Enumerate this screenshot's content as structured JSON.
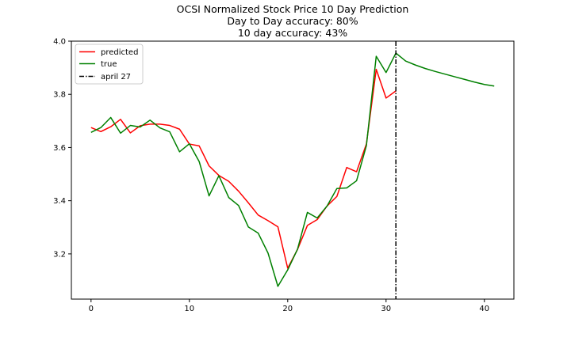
{
  "chart_data": {
    "type": "line",
    "title_lines": [
      "OCSI Normalized Stock Price 10 Day Prediction",
      "Day to Day accuracy: 80%",
      "10 day accuracy: 43%"
    ],
    "xlabel": "",
    "ylabel": "",
    "xlim": [
      -2,
      43
    ],
    "ylim": [
      3.03,
      4.0
    ],
    "xticks": [
      0,
      10,
      20,
      30,
      40
    ],
    "yticks": [
      3.2,
      3.4,
      3.6,
      3.8,
      4.0
    ],
    "xtick_labels": [
      "0",
      "10",
      "20",
      "30",
      "40"
    ],
    "ytick_labels": [
      "3.2",
      "3.4",
      "3.6",
      "3.8",
      "4.0"
    ],
    "legend_position": "upper-left",
    "series": [
      {
        "name": "predicted",
        "color": "#ff0000",
        "style": "solid",
        "x": [
          0,
          1,
          2,
          3,
          4,
          5,
          6,
          7,
          8,
          9,
          10,
          11,
          12,
          13,
          14,
          15,
          16,
          17,
          18,
          19,
          20,
          21,
          22,
          23,
          24,
          25,
          26,
          27,
          28,
          29,
          30,
          31
        ],
        "y": [
          3.675,
          3.66,
          3.678,
          3.706,
          3.655,
          3.682,
          3.688,
          3.688,
          3.683,
          3.669,
          3.613,
          3.606,
          3.531,
          3.495,
          3.473,
          3.436,
          3.392,
          3.346,
          3.325,
          3.302,
          3.146,
          3.217,
          3.307,
          3.329,
          3.38,
          3.416,
          3.525,
          3.509,
          3.613,
          3.894,
          3.786,
          3.813
        ]
      },
      {
        "name": "true",
        "color": "#008000",
        "style": "solid",
        "x": [
          0,
          1,
          2,
          3,
          4,
          5,
          6,
          7,
          8,
          9,
          10,
          11,
          12,
          13,
          14,
          15,
          16,
          17,
          18,
          19,
          20,
          21,
          22,
          23,
          24,
          25,
          26,
          27,
          28,
          29,
          30,
          31,
          32,
          33,
          34,
          35,
          36,
          37,
          38,
          39,
          40,
          41
        ],
        "y": [
          3.657,
          3.675,
          3.713,
          3.654,
          3.683,
          3.677,
          3.703,
          3.674,
          3.659,
          3.584,
          3.614,
          3.547,
          3.418,
          3.494,
          3.412,
          3.382,
          3.301,
          3.278,
          3.203,
          3.078,
          3.14,
          3.218,
          3.356,
          3.335,
          3.38,
          3.446,
          3.448,
          3.475,
          3.607,
          3.943,
          3.882,
          3.955,
          3.925,
          3.91,
          3.897,
          3.886,
          3.876,
          3.866,
          3.856,
          3.846,
          3.837,
          3.831
        ]
      }
    ],
    "vlines": [
      {
        "name": "april 27",
        "x": 31,
        "color": "#000000",
        "style": "dashdot"
      }
    ]
  }
}
